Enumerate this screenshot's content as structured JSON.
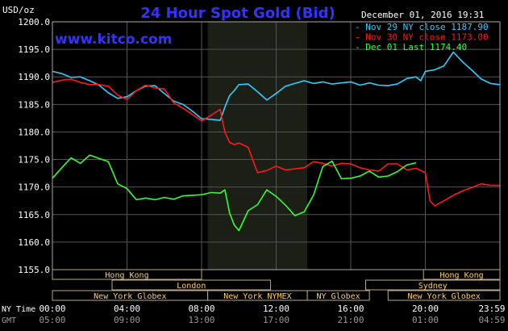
{
  "chart_data": {
    "type": "line",
    "title": "24 Hour Spot Gold (Bid)",
    "watermark": "www.kitco.com",
    "date_label": "December 01, 2016 19:31",
    "yunit": "USD/oz",
    "ylim": [
      1155.0,
      1200.0
    ],
    "ytick_labels": [
      "1155.0",
      "1160.0",
      "1165.0",
      "1170.0",
      "1175.0",
      "1180.0",
      "1185.0",
      "1190.0",
      "1195.0",
      "1200.0"
    ],
    "yticks": [
      1155,
      1160,
      1165,
      1170,
      1175,
      1180,
      1185,
      1190,
      1195,
      1200
    ],
    "xlim": [
      0,
      24
    ],
    "grid": true,
    "legend_position": "top-right",
    "x_axis_rows": [
      {
        "label": "NY Time",
        "ticks": [
          {
            "x": 0,
            "label": "00:00"
          },
          {
            "x": 4,
            "label": "04:00"
          },
          {
            "x": 8,
            "label": "08:00"
          },
          {
            "x": 12,
            "label": "12:00"
          },
          {
            "x": 16,
            "label": "16:00"
          },
          {
            "x": 20,
            "label": "20:00"
          },
          {
            "x": 24,
            "label": "23:59"
          }
        ]
      },
      {
        "label": "GMT",
        "ticks": [
          {
            "x": 0,
            "label": "05:00"
          },
          {
            "x": 4,
            "label": "09:00"
          },
          {
            "x": 8,
            "label": "13:00"
          },
          {
            "x": 12,
            "label": "17:00"
          },
          {
            "x": 16,
            "label": "21:00"
          },
          {
            "x": 20,
            "label": "01:00"
          },
          {
            "x": 24,
            "label": "04:59"
          }
        ]
      }
    ],
    "shaded_session": {
      "start": 8.33,
      "end": 13.67
    },
    "sessions": [
      {
        "name": "Hong Kong",
        "row": 0,
        "start": 0,
        "end": 8.0
      },
      {
        "name": "Hong Kong",
        "row": 0,
        "start": 19.9,
        "end": 24
      },
      {
        "name": "London",
        "row": 1,
        "start": 3.2,
        "end": 11.7
      },
      {
        "name": "Sydney",
        "row": 1,
        "start": 16.8,
        "end": 24
      },
      {
        "name": "New York Globex",
        "row": 2,
        "start": 0,
        "end": 8.33
      },
      {
        "name": "New York NYMEX",
        "row": 2,
        "start": 8.33,
        "end": 13.67
      },
      {
        "name": "NY Globex",
        "row": 2,
        "start": 13.67,
        "end": 17.0
      },
      {
        "name": "New York Globex",
        "row": 2,
        "start": 18.0,
        "end": 24
      }
    ],
    "series": [
      {
        "name": "Nov 29 NY close 1187.90",
        "color": "#33ccff",
        "x": [
          0,
          0.5,
          1,
          1.5,
          2,
          2.5,
          3,
          3.5,
          4,
          4.5,
          5,
          5.5,
          6,
          6.5,
          7,
          7.5,
          8,
          8.5,
          9,
          9.25,
          9.5,
          9.75,
          10,
          10.5,
          11,
          11.5,
          12,
          12.5,
          13,
          13.5,
          14,
          14.5,
          15,
          15.5,
          16,
          16.5,
          17,
          17.5,
          18,
          18.5,
          19,
          19.5,
          19.75,
          20,
          20.5,
          21,
          21.5,
          22,
          22.5,
          23,
          23.5,
          24
        ],
        "values": [
          1191.0,
          1190.6,
          1189.9,
          1190.0,
          1189.3,
          1188.5,
          1187.1,
          1186.1,
          1186.4,
          1187.5,
          1188.3,
          1188.4,
          1187.0,
          1185.6,
          1185.0,
          1183.8,
          1182.4,
          1182.3,
          1182.1,
          1184.5,
          1186.6,
          1187.5,
          1188.6,
          1188.7,
          1187.3,
          1185.8,
          1187.0,
          1188.3,
          1188.8,
          1189.3,
          1188.8,
          1189.1,
          1188.7,
          1188.9,
          1189.1,
          1188.5,
          1188.9,
          1188.5,
          1188.4,
          1188.7,
          1189.7,
          1190.0,
          1189.3,
          1191.0,
          1191.3,
          1192.0,
          1194.5,
          1192.7,
          1191.2,
          1189.6,
          1188.8,
          1188.6
        ]
      },
      {
        "name": "Nov 30 NY close 1173.00",
        "color": "#ff1a1a",
        "x": [
          0,
          0.5,
          1,
          1.5,
          2,
          2.5,
          3,
          3.5,
          4,
          4.5,
          5,
          5.5,
          6,
          6.5,
          7,
          7.5,
          8,
          8.5,
          9,
          9.25,
          9.5,
          9.75,
          10,
          10.5,
          11,
          11.5,
          12,
          12.5,
          13,
          13.5,
          14,
          14.5,
          15,
          15.5,
          16,
          16.5,
          17,
          17.5,
          18,
          18.5,
          19,
          19.5,
          20,
          20.25,
          20.5,
          21,
          21.5,
          22,
          22.5,
          23,
          23.5,
          24
        ],
        "values": [
          1189.0,
          1189.4,
          1189.6,
          1189.0,
          1188.6,
          1188.6,
          1188.3,
          1186.7,
          1185.9,
          1187.5,
          1188.5,
          1188.0,
          1187.8,
          1185.3,
          1184.3,
          1183.2,
          1182.0,
          1183.0,
          1184.1,
          1180.0,
          1178.1,
          1177.7,
          1178.0,
          1177.2,
          1172.6,
          1173.0,
          1173.8,
          1173.1,
          1173.3,
          1173.5,
          1174.6,
          1174.3,
          1173.8,
          1174.3,
          1174.2,
          1173.5,
          1173.1,
          1172.9,
          1174.2,
          1174.2,
          1173.1,
          1173.4,
          1172.6,
          1167.5,
          1166.6,
          1167.5,
          1168.5,
          1169.3,
          1169.9,
          1170.6,
          1170.3,
          1170.3
        ]
      },
      {
        "name": "Dec 01 Last 1174.40",
        "color": "#33ff33",
        "x": [
          0,
          0.5,
          1,
          1.5,
          2,
          2.5,
          3,
          3.5,
          4,
          4.5,
          5,
          5.5,
          6,
          6.5,
          7,
          7.5,
          8,
          8.5,
          9,
          9.25,
          9.5,
          9.75,
          10,
          10.5,
          11,
          11.5,
          12,
          12.5,
          13,
          13.5,
          14,
          14.5,
          15,
          15.5,
          16,
          16.5,
          17,
          17.5,
          18,
          18.5,
          19,
          19.5
        ],
        "values": [
          1171.6,
          1173.5,
          1175.3,
          1174.3,
          1175.8,
          1175.2,
          1174.6,
          1170.6,
          1169.7,
          1167.7,
          1168.0,
          1167.7,
          1168.1,
          1167.8,
          1168.4,
          1168.5,
          1168.6,
          1169.0,
          1168.9,
          1169.5,
          1165.3,
          1163.1,
          1162.1,
          1165.7,
          1166.8,
          1169.5,
          1168.3,
          1166.7,
          1164.8,
          1165.5,
          1168.5,
          1173.7,
          1174.7,
          1171.5,
          1171.6,
          1172.0,
          1172.9,
          1171.8,
          1172.0,
          1172.8,
          1174.0,
          1174.4
        ]
      }
    ]
  }
}
